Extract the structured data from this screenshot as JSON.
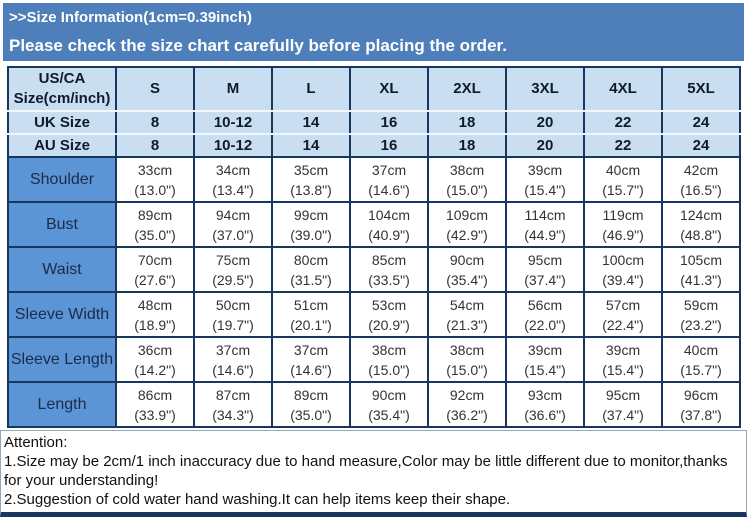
{
  "header": {
    "title": ">>Size Information(1cm=0.39inch)",
    "subtitle": "Please check the size chart carefully before placing the order."
  },
  "size_table": {
    "corner_label": "US/CA Size(cm/inch)",
    "size_columns": [
      "S",
      "M",
      "L",
      "XL",
      "2XL",
      "3XL",
      "4XL",
      "5XL"
    ],
    "uk_row": {
      "label": "UK Size",
      "values": [
        "8",
        "10-12",
        "14",
        "16",
        "18",
        "20",
        "22",
        "24"
      ]
    },
    "au_row": {
      "label": "AU Size",
      "values": [
        "8",
        "10-12",
        "14",
        "16",
        "18",
        "20",
        "22",
        "24"
      ]
    },
    "measure_rows": [
      {
        "label": "Shoulder",
        "cm": [
          "33cm",
          "34cm",
          "35cm",
          "37cm",
          "38cm",
          "39cm",
          "40cm",
          "42cm"
        ],
        "inch": [
          "(13.0\")",
          "(13.4\")",
          "(13.8\")",
          "(14.6\")",
          "(15.0\")",
          "(15.4\")",
          "(15.7\")",
          "(16.5\")"
        ]
      },
      {
        "label": "Bust",
        "cm": [
          "89cm",
          "94cm",
          "99cm",
          "104cm",
          "109cm",
          "114cm",
          "119cm",
          "124cm"
        ],
        "inch": [
          "(35.0\")",
          "(37.0\")",
          "(39.0\")",
          "(40.9\")",
          "(42.9\")",
          "(44.9\")",
          "(46.9\")",
          "(48.8\")"
        ]
      },
      {
        "label": "Waist",
        "cm": [
          "70cm",
          "75cm",
          "80cm",
          "85cm",
          "90cm",
          "95cm",
          "100cm",
          "105cm"
        ],
        "inch": [
          "(27.6\")",
          "(29.5\")",
          "(31.5\")",
          "(33.5\")",
          "(35.4\")",
          "(37.4\")",
          "(39.4\")",
          "(41.3\")"
        ]
      },
      {
        "label": "Sleeve Width",
        "cm": [
          "48cm",
          "50cm",
          "51cm",
          "53cm",
          "54cm",
          "56cm",
          "57cm",
          "59cm"
        ],
        "inch": [
          "(18.9\")",
          "(19.7\")",
          "(20.1\")",
          "(20.9\")",
          "(21.3\")",
          "(22.0\")",
          "(22.4\")",
          "(23.2\")"
        ]
      },
      {
        "label": "Sleeve Length",
        "cm": [
          "36cm",
          "37cm",
          "37cm",
          "38cm",
          "38cm",
          "39cm",
          "39cm",
          "40cm"
        ],
        "inch": [
          "(14.2\")",
          "(14.6\")",
          "(14.6\")",
          "(15.0\")",
          "(15.0\")",
          "(15.4\")",
          "(15.4\")",
          "(15.7\")"
        ]
      },
      {
        "label": "Length",
        "cm": [
          "86cm",
          "87cm",
          "89cm",
          "90cm",
          "92cm",
          "93cm",
          "95cm",
          "96cm"
        ],
        "inch": [
          "(33.9\")",
          "(34.3\")",
          "(35.0\")",
          "(35.4\")",
          "(36.2\")",
          "(36.6\")",
          "(37.4\")",
          "(37.8\")"
        ]
      }
    ]
  },
  "attention": {
    "heading": "Attention:",
    "notes": [
      "1.Size may be 2cm/1 inch inaccuracy due to hand measure,Color may be little different due to monitor,thanks for your understanding!",
      "2.Suggestion of cold water hand washing.It can help items keep their shape."
    ]
  },
  "colors": {
    "banner_blue": "#4e7fba",
    "header_light_blue": "#c9def1",
    "row_label_blue": "#5b95d5",
    "table_border_navy": "#17375e"
  }
}
